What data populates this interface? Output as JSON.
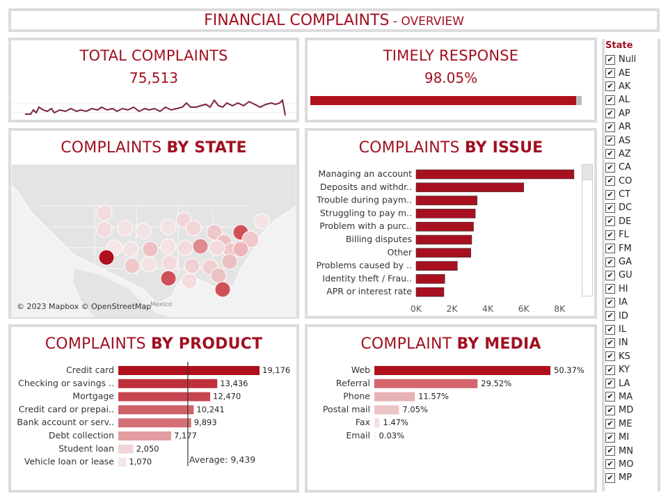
{
  "header": {
    "title_bold": "FINANCIAL COMPLAINTS",
    "title_rest": " - OVERVIEW"
  },
  "total": {
    "title": "TOTAL COMPLAINTS",
    "value": "75,513"
  },
  "timely": {
    "title": "TIMELY RESPONSE",
    "value": "98.05%",
    "fraction": 0.9805
  },
  "state_map": {
    "title_plain": "COMPLAINTS ",
    "title_bold": "BY STATE",
    "attribution": "© 2023 Mapbox © OpenStreetMap",
    "mexico": "Mexico"
  },
  "issue": {
    "title_plain": "COMPLAINTS ",
    "title_bold": "BY ISSUE",
    "labels": [
      "Managing an account",
      "Deposits and withdr..",
      "Trouble during paym..",
      "Struggling to pay m..",
      "Problem with a purc..",
      "Billing disputes",
      "Other",
      "Problems caused by ..",
      "Identity theft / Frau..",
      "APR or interest rate"
    ],
    "values": [
      8800,
      6000,
      3400,
      3300,
      3200,
      3100,
      3050,
      2300,
      1600,
      1550
    ],
    "ticks": [
      "0K",
      "2K",
      "4K",
      "6K",
      "8K"
    ]
  },
  "product": {
    "title_plain": "COMPLAINTS ",
    "title_bold": "BY PRODUCT",
    "labels": [
      "Credit card",
      "Checking or savings ..",
      "Mortgage",
      "Credit card or prepai..",
      "Bank account or serv..",
      "Debt collection",
      "Student loan",
      "Vehicle loan or lease"
    ],
    "values": [
      19176,
      13436,
      12470,
      10241,
      9893,
      7177,
      2050,
      1070
    ],
    "value_labels": [
      "19,176",
      "13,436",
      "12,470",
      "10,241",
      "9,893",
      "7,177",
      "2,050",
      "1,070"
    ],
    "average_label": "Average: 9,439",
    "average": 9439,
    "colors": [
      "#b0101c",
      "#c0303a",
      "#c74550",
      "#cf6068",
      "#d47078",
      "#e39ea2",
      "#f1d6d8",
      "#f4e6e7"
    ]
  },
  "media": {
    "title_plain": "COMPLAINT ",
    "title_bold": "BY MEDIA",
    "labels": [
      "Web",
      "Referral",
      "Phone",
      "Postal mail",
      "Fax",
      "Email"
    ],
    "values": [
      50.37,
      29.52,
      11.57,
      7.05,
      1.47,
      0.03
    ],
    "value_labels": [
      "50.37%",
      "29.52%",
      "11.57%",
      "7.05%",
      "1.47%",
      "0.03%"
    ],
    "colors": [
      "#b0101c",
      "#d4656d",
      "#e8b2b5",
      "#edc4c6",
      "#f3e0e1",
      "#f7eeee"
    ]
  },
  "state_filter": {
    "header": "State",
    "check": "✔",
    "states": [
      "Null",
      "AE",
      "AK",
      "AL",
      "AP",
      "AR",
      "AS",
      "AZ",
      "CA",
      "CO",
      "CT",
      "DC",
      "DE",
      "FL",
      "FM",
      "GA",
      "GU",
      "HI",
      "IA",
      "ID",
      "IL",
      "IN",
      "KS",
      "KY",
      "LA",
      "MA",
      "MD",
      "ME",
      "MI",
      "MN",
      "MO",
      "MP"
    ]
  },
  "colors": {
    "accent": "#a01020",
    "bar_dark": "#a81020",
    "panel_border": "#dcdcdc"
  }
}
